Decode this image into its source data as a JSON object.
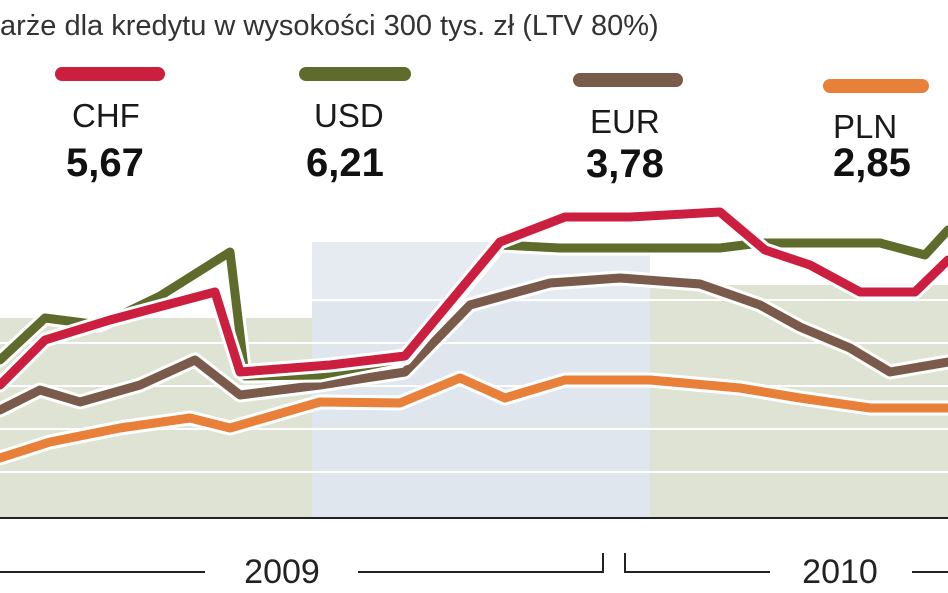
{
  "chart_data": {
    "type": "line",
    "title": "arże dla kredytu w wysokości 300 tys. zł (LTV 80%)",
    "year_labels": [
      "2009",
      "2010"
    ],
    "series": [
      {
        "name": "CHF",
        "value_label": "5,67",
        "color": "#cc1f3f",
        "points": [
          [
            0,
            385
          ],
          [
            45,
            340
          ],
          [
            110,
            320
          ],
          [
            215,
            292
          ],
          [
            240,
            372
          ],
          [
            330,
            365
          ],
          [
            405,
            356
          ],
          [
            500,
            242
          ],
          [
            565,
            217
          ],
          [
            630,
            217
          ],
          [
            720,
            212
          ],
          [
            765,
            250
          ],
          [
            810,
            265
          ],
          [
            860,
            292
          ],
          [
            915,
            292
          ],
          [
            948,
            260
          ]
        ]
      },
      {
        "name": "USD",
        "value_label": "6,21",
        "color": "#5e6b2a",
        "points": [
          [
            0,
            360
          ],
          [
            45,
            318
          ],
          [
            100,
            325
          ],
          [
            160,
            296
          ],
          [
            230,
            252
          ],
          [
            245,
            376
          ],
          [
            320,
            375
          ],
          [
            405,
            358
          ],
          [
            500,
            245
          ],
          [
            560,
            248
          ],
          [
            720,
            248
          ],
          [
            760,
            243
          ],
          [
            880,
            243
          ],
          [
            925,
            255
          ],
          [
            948,
            230
          ]
        ]
      },
      {
        "name": "EUR",
        "value_label": "3,78",
        "color": "#7a5a4a",
        "points": [
          [
            0,
            410
          ],
          [
            40,
            390
          ],
          [
            80,
            402
          ],
          [
            140,
            385
          ],
          [
            195,
            360
          ],
          [
            240,
            395
          ],
          [
            320,
            385
          ],
          [
            405,
            372
          ],
          [
            470,
            305
          ],
          [
            550,
            283
          ],
          [
            620,
            278
          ],
          [
            700,
            284
          ],
          [
            760,
            305
          ],
          [
            800,
            327
          ],
          [
            850,
            348
          ],
          [
            890,
            372
          ],
          [
            948,
            362
          ]
        ]
      },
      {
        "name": "PLN",
        "value_label": "2,85",
        "color": "#e8803a",
        "points": [
          [
            0,
            458
          ],
          [
            50,
            442
          ],
          [
            120,
            428
          ],
          [
            190,
            418
          ],
          [
            230,
            428
          ],
          [
            320,
            402
          ],
          [
            400,
            403
          ],
          [
            460,
            378
          ],
          [
            505,
            398
          ],
          [
            565,
            380
          ],
          [
            650,
            380
          ],
          [
            740,
            388
          ],
          [
            800,
            398
          ],
          [
            870,
            408
          ],
          [
            948,
            408
          ]
        ]
      }
    ]
  }
}
